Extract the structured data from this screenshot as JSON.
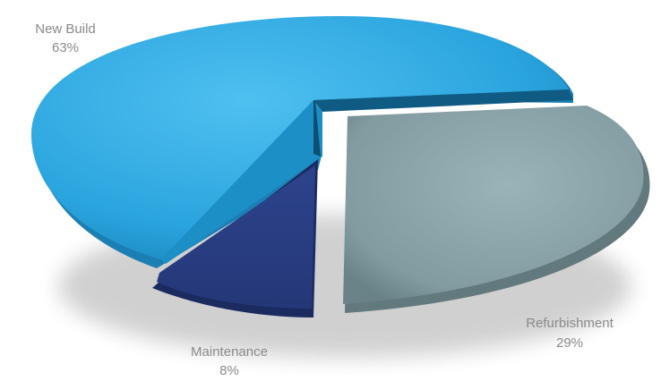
{
  "chart_data": {
    "type": "pie",
    "style": "3d-exploded",
    "title": "",
    "slices": [
      {
        "name": "New Build",
        "value": 63,
        "label": "63%",
        "color": "#33a8df"
      },
      {
        "name": "Refurbishment",
        "value": 29,
        "label": "29%",
        "color": "#8aa3a8"
      },
      {
        "name": "Maintenance",
        "value": 8,
        "label": "8%",
        "color": "#2a3e84"
      }
    ],
    "legend": "none"
  }
}
